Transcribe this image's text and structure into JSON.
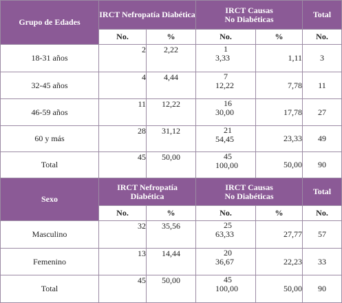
{
  "section1": {
    "headers": {
      "group": "Grupo de Edades",
      "diab": "IRCT Nefropatía Diabética",
      "nodiab_line1": "IRCT Causas",
      "nodiab_line2": "No Diabéticas",
      "total": "Total"
    },
    "subheaders": {
      "no1": "No.",
      "pct1": "%",
      "no2": "No.",
      "pct2": "%",
      "no3": "No."
    },
    "rows": [
      {
        "label": "18-31 años",
        "diab_no": "2",
        "diab_pct": "2,22",
        "nd_no": "1",
        "nd_extra": "3,33",
        "nd_pct": "1,11",
        "total": "3"
      },
      {
        "label": "32-45 años",
        "diab_no": "4",
        "diab_pct": "4,44",
        "nd_no": "7",
        "nd_extra": "12,22",
        "nd_pct": "7,78",
        "total": "11"
      },
      {
        "label": "46-59 años",
        "diab_no": "11",
        "diab_pct": "12,22",
        "nd_no": "16",
        "nd_extra": "30,00",
        "nd_pct": "17,78",
        "total": "27"
      },
      {
        "label": "60 y más",
        "diab_no": "28",
        "diab_pct": "31,12",
        "nd_no": "21",
        "nd_extra": "54,45",
        "nd_pct": "23,33",
        "total": "49"
      },
      {
        "label": "Total",
        "diab_no": "45",
        "diab_pct": "50,00",
        "nd_no": "45",
        "nd_extra": "100,00",
        "nd_pct": "50,00",
        "total": "90"
      }
    ]
  },
  "section2": {
    "headers": {
      "group": "Sexo",
      "diab_line1": "IRCT Nefropatía",
      "diab_line2": "Diabética",
      "nodiab_line1": "IRCT Causas",
      "nodiab_line2": "No Diabéticas",
      "total": "Total"
    },
    "subheaders": {
      "no1": "No.",
      "pct1": "%",
      "no2": "No.",
      "pct2": "%",
      "no3": "No."
    },
    "rows": [
      {
        "label": "Masculino",
        "diab_no": "32",
        "diab_pct": "35,56",
        "nd_no": "25",
        "nd_extra": "63,33",
        "nd_pct": "27,77",
        "total": "57"
      },
      {
        "label": "Femenino",
        "diab_no": "13",
        "diab_pct": "14,44",
        "nd_no": "20",
        "nd_extra": "36,67",
        "nd_pct": "22,23",
        "total": "33"
      },
      {
        "label": "Total",
        "diab_no": "45",
        "diab_pct": "50,00",
        "nd_no": "45",
        "nd_extra": "100,00",
        "nd_pct": "50,00",
        "total": "90"
      }
    ]
  },
  "colors": {
    "header_bg": "#8b5a96",
    "header_text": "#ffffff",
    "border": "#9b8aa3"
  }
}
